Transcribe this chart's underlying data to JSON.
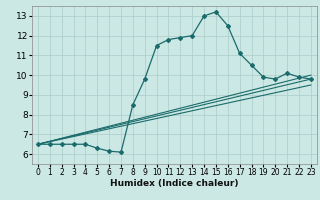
{
  "xlabel": "Humidex (Indice chaleur)",
  "xlim": [
    -0.5,
    23.5
  ],
  "ylim": [
    5.5,
    13.5
  ],
  "yticks": [
    6,
    7,
    8,
    9,
    10,
    11,
    12,
    13
  ],
  "xticks": [
    0,
    1,
    2,
    3,
    4,
    5,
    6,
    7,
    8,
    9,
    10,
    11,
    12,
    13,
    14,
    15,
    16,
    17,
    18,
    19,
    20,
    21,
    22,
    23
  ],
  "bg_color": "#cce8e4",
  "grid_color": "#aaccca",
  "line_color": "#1a6b6b",
  "line1_x": [
    0,
    1,
    2,
    3,
    4,
    5,
    6,
    7,
    8,
    9,
    10,
    11,
    12,
    13,
    14,
    15,
    16,
    17,
    18,
    19,
    20,
    21,
    22,
    23
  ],
  "line1_y": [
    6.5,
    6.5,
    6.5,
    6.5,
    6.5,
    6.3,
    6.15,
    6.1,
    8.5,
    9.8,
    11.5,
    11.8,
    11.9,
    12.0,
    13.0,
    13.2,
    12.5,
    11.1,
    10.5,
    9.9,
    9.8,
    10.1,
    9.9,
    9.8
  ],
  "line2_x": [
    0,
    23
  ],
  "line2_y": [
    6.5,
    9.8
  ],
  "line3_x": [
    0,
    23
  ],
  "line3_y": [
    6.5,
    10.0
  ],
  "line4_x": [
    0,
    23
  ],
  "line4_y": [
    6.5,
    9.5
  ]
}
